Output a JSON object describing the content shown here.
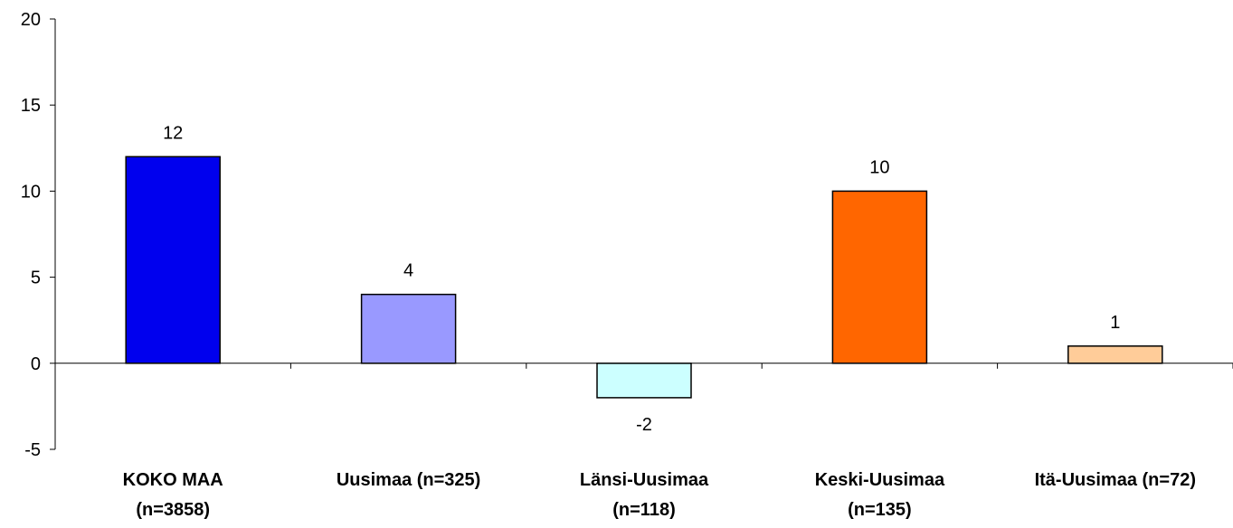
{
  "chart_data": {
    "type": "bar",
    "categories": [
      [
        "KOKO MAA",
        "(n=3858)"
      ],
      [
        "Uusimaa (n=325)"
      ],
      [
        "Länsi-Uusimaa",
        "(n=118)"
      ],
      [
        "Keski-Uusimaa",
        "(n=135)"
      ],
      [
        "Itä-Uusimaa (n=72)"
      ]
    ],
    "values": [
      12,
      4,
      -2,
      10,
      1
    ],
    "data_labels": [
      "12",
      "4",
      "-2",
      "10",
      "1"
    ],
    "colors": [
      "#0000ee",
      "#9999ff",
      "#ccffff",
      "#ff6600",
      "#ffcc99"
    ],
    "ylim": [
      -5,
      20
    ],
    "yticks": [
      -5,
      0,
      5,
      10,
      15,
      20
    ],
    "title": "",
    "xlabel": "",
    "ylabel": "",
    "grid": false,
    "legend": "none"
  }
}
